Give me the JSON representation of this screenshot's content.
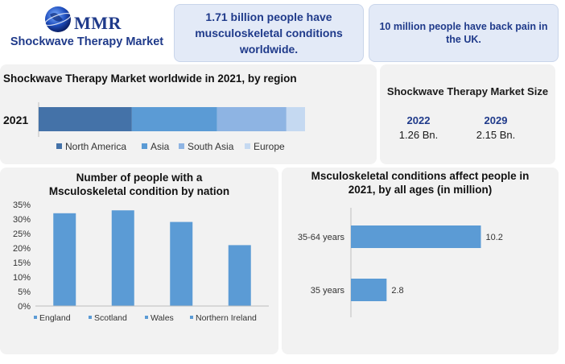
{
  "header": {
    "logo_text": "MMR",
    "title": "Shockwave Therapy Market"
  },
  "stats": [
    {
      "text": "1.71 billion people have musculoskeletal conditions worldwide."
    },
    {
      "text": "10 million people have back pain in the UK."
    }
  ],
  "market_size": {
    "title": "Shockwave Therapy Market Size",
    "items": [
      {
        "year": "2022",
        "value": "1.26  Bn."
      },
      {
        "year": "2029",
        "value": "2.15 Bn."
      }
    ]
  },
  "colors": {
    "accent": "#1f3a8a",
    "bar": "#5b9bd5",
    "panel": "#f2f2f2",
    "north_america": "#4472a8",
    "asia": "#5b9bd5",
    "south_asia": "#8eb4e3",
    "europe": "#c5d9f1"
  },
  "chart_data": [
    {
      "type": "bar",
      "orientation": "horizontal",
      "stacked": true,
      "title": "Shockwave Therapy Market worldwide in 2021, by region",
      "categories": [
        "2021"
      ],
      "series": [
        {
          "name": "North America",
          "values": [
            35
          ]
        },
        {
          "name": "Asia",
          "values": [
            32
          ]
        },
        {
          "name": "South Asia",
          "values": [
            26
          ]
        },
        {
          "name": "Europe",
          "values": [
            7
          ]
        }
      ],
      "legend": "bottom",
      "grid": false
    },
    {
      "type": "bar",
      "title": "Number of people with a Msculoskeletal condition by nation",
      "categories": [
        "England",
        "Scotland",
        "Wales",
        "Northern Ireland"
      ],
      "values": [
        32,
        33,
        29,
        21
      ],
      "yticks": [
        "0%",
        "5%",
        "10%",
        "15%",
        "20%",
        "25%",
        "30%",
        "35%"
      ],
      "ylim": [
        0,
        35
      ],
      "legend": "bottom",
      "grid": false
    },
    {
      "type": "bar",
      "orientation": "horizontal",
      "title": "Msculoskeletal conditions affect people in 2021, by all ages (in million)",
      "categories": [
        "35-64 years",
        "35 years"
      ],
      "values": [
        10.2,
        2.8
      ],
      "data_labels": [
        "10.2",
        "2.8"
      ],
      "xlim": [
        0,
        12
      ],
      "grid": false
    }
  ]
}
